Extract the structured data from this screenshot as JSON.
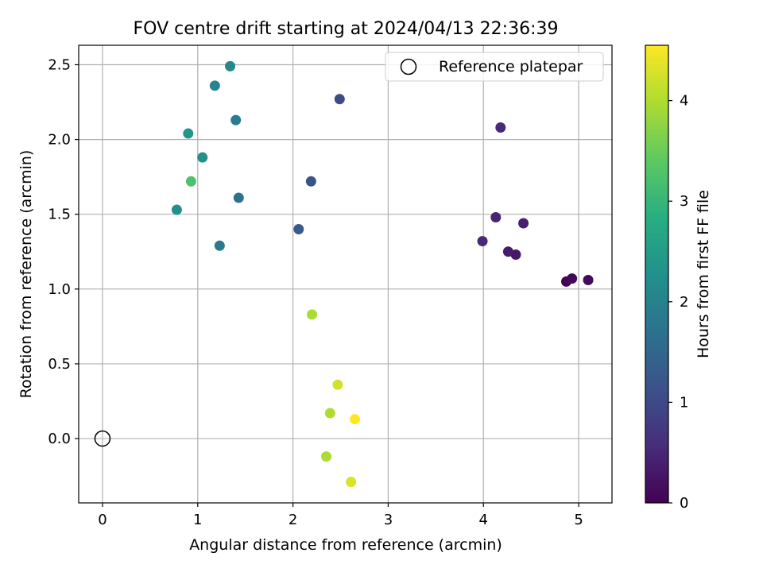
{
  "chart_data": {
    "type": "scatter",
    "title": "FOV centre drift starting at 2024/04/13 22:36:39",
    "xlabel": "Angular distance from reference (arcmin)",
    "ylabel": "Rotation from reference (arcmin)",
    "xlim": [
      -0.25,
      5.35
    ],
    "ylim": [
      -0.43,
      2.63
    ],
    "xticks": [
      0,
      1,
      2,
      3,
      4,
      5
    ],
    "xtick_labels": [
      "0",
      "1",
      "2",
      "3",
      "4",
      "5"
    ],
    "yticks": [
      0.0,
      0.5,
      1.0,
      1.5,
      2.0,
      2.5
    ],
    "ytick_labels": [
      "0.0",
      "0.5",
      "1.0",
      "1.5",
      "2.0",
      "2.5"
    ],
    "grid": true,
    "legend": {
      "placement": "top-right",
      "entries": [
        {
          "label": "Reference platepar",
          "marker": "open-circle",
          "color": "#000000"
        }
      ]
    },
    "reference_point": {
      "x": 0.0,
      "y": 0.0
    },
    "colorbar": {
      "label": "Hours from first FF file",
      "colormap": "viridis",
      "range": [
        0,
        4.55
      ],
      "ticks": [
        0,
        1,
        2,
        3,
        4
      ],
      "tick_labels": [
        "0",
        "1",
        "2",
        "3",
        "4"
      ]
    },
    "points": [
      {
        "x": 4.87,
        "y": 1.05,
        "hours": 0.02
      },
      {
        "x": 4.93,
        "y": 1.07,
        "hours": 0.08
      },
      {
        "x": 5.1,
        "y": 1.06,
        "hours": 0.12
      },
      {
        "x": 4.34,
        "y": 1.23,
        "hours": 0.3
      },
      {
        "x": 4.26,
        "y": 1.25,
        "hours": 0.35
      },
      {
        "x": 4.42,
        "y": 1.44,
        "hours": 0.4
      },
      {
        "x": 4.13,
        "y": 1.48,
        "hours": 0.45
      },
      {
        "x": 3.99,
        "y": 1.32,
        "hours": 0.5
      },
      {
        "x": 4.18,
        "y": 2.08,
        "hours": 0.55
      },
      {
        "x": 2.49,
        "y": 2.27,
        "hours": 1.05
      },
      {
        "x": 2.19,
        "y": 1.72,
        "hours": 1.15
      },
      {
        "x": 2.06,
        "y": 1.4,
        "hours": 1.3
      },
      {
        "x": 1.43,
        "y": 1.61,
        "hours": 1.75
      },
      {
        "x": 1.23,
        "y": 1.29,
        "hours": 1.85
      },
      {
        "x": 1.4,
        "y": 2.13,
        "hours": 1.9
      },
      {
        "x": 1.18,
        "y": 2.36,
        "hours": 2.05
      },
      {
        "x": 1.34,
        "y": 2.49,
        "hours": 2.15
      },
      {
        "x": 0.78,
        "y": 1.53,
        "hours": 2.25
      },
      {
        "x": 1.05,
        "y": 1.88,
        "hours": 2.3
      },
      {
        "x": 0.9,
        "y": 2.04,
        "hours": 2.4
      },
      {
        "x": 0.93,
        "y": 1.72,
        "hours": 3.25
      },
      {
        "x": 2.2,
        "y": 0.83,
        "hours": 3.95
      },
      {
        "x": 2.35,
        "y": -0.12,
        "hours": 3.98
      },
      {
        "x": 2.39,
        "y": 0.17,
        "hours": 4.0
      },
      {
        "x": 2.47,
        "y": 0.36,
        "hours": 4.25
      },
      {
        "x": 2.61,
        "y": -0.29,
        "hours": 4.3
      },
      {
        "x": 2.65,
        "y": 0.13,
        "hours": 4.55
      }
    ]
  }
}
